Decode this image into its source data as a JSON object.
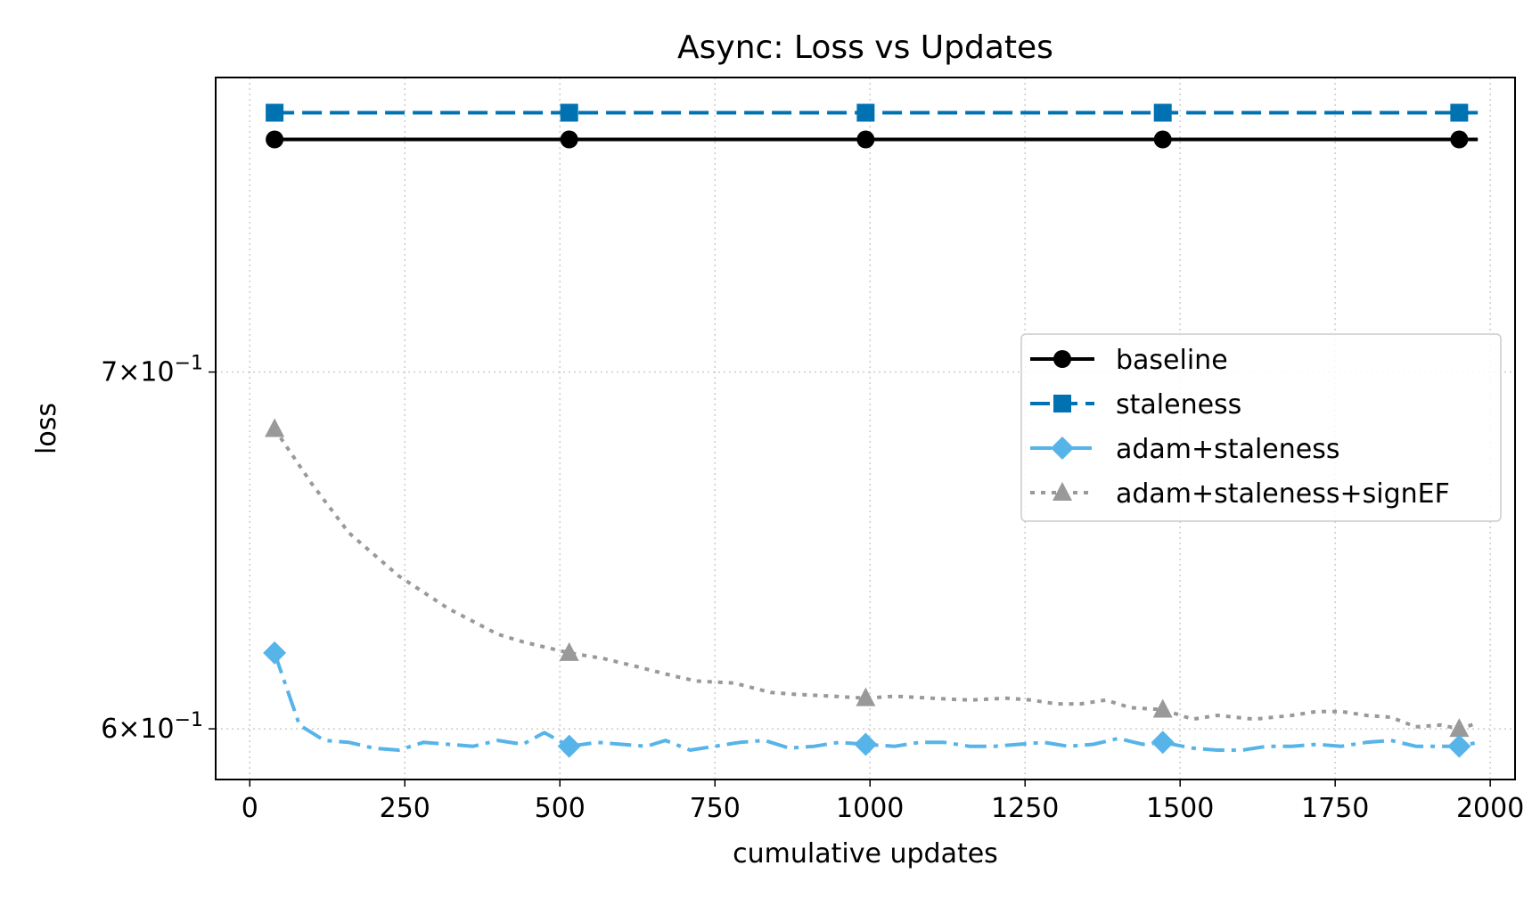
{
  "chart_data": {
    "type": "line",
    "title": "Async: Loss vs Updates",
    "xlabel": "cumulative updates",
    "ylabel": "loss",
    "yscale": "log",
    "xlim": [
      -55,
      2040
    ],
    "ylim": [
      0.587,
      0.795
    ],
    "xticks": [
      0,
      250,
      500,
      750,
      1000,
      1250,
      1500,
      1750,
      2000
    ],
    "xtick_labels": [
      "0",
      "250",
      "500",
      "750",
      "1000",
      "1250",
      "1500",
      "1750",
      "2000"
    ],
    "yticks": [
      {
        "value": 0.7,
        "mantissa": "7",
        "exponent": "−1"
      },
      {
        "value": 0.6,
        "mantissa": "6",
        "exponent": "−1"
      }
    ],
    "grid": true,
    "legend_position": "center-right",
    "series": [
      {
        "name": "baseline",
        "color": "#000000",
        "linestyle": "solid",
        "marker": "circle",
        "x": [
          40,
          1980
        ],
        "y": [
          0.774,
          0.774
        ],
        "marker_x": [
          40,
          515,
          993,
          1472,
          1950
        ],
        "marker_y": [
          0.774,
          0.774,
          0.774,
          0.774,
          0.774
        ]
      },
      {
        "name": "staleness",
        "color": "#0072b2",
        "linestyle": "dashed",
        "marker": "square",
        "x": [
          40,
          1980
        ],
        "y": [
          0.783,
          0.783
        ],
        "marker_x": [
          40,
          515,
          993,
          1472,
          1950
        ],
        "marker_y": [
          0.783,
          0.783,
          0.783,
          0.783,
          0.783
        ]
      },
      {
        "name": "adam+staleness",
        "color": "#56b4e9",
        "linestyle": "dashdot",
        "marker": "diamond",
        "x": [
          40,
          80,
          120,
          160,
          200,
          240,
          280,
          320,
          360,
          400,
          440,
          475,
          515,
          560,
          600,
          640,
          670,
          710,
          750,
          790,
          830,
          870,
          910,
          950,
          993,
          1040,
          1080,
          1120,
          1160,
          1200,
          1240,
          1280,
          1320,
          1360,
          1400,
          1440,
          1472,
          1520,
          1560,
          1600,
          1640,
          1680,
          1720,
          1760,
          1800,
          1840,
          1880,
          1920,
          1950,
          1980
        ],
        "y": [
          0.62,
          0.601,
          0.597,
          0.5965,
          0.595,
          0.5945,
          0.5965,
          0.596,
          0.5955,
          0.597,
          0.596,
          0.599,
          0.5955,
          0.5965,
          0.596,
          0.5955,
          0.597,
          0.5945,
          0.5955,
          0.5965,
          0.597,
          0.595,
          0.5955,
          0.5965,
          0.596,
          0.5955,
          0.5965,
          0.5965,
          0.5955,
          0.5955,
          0.596,
          0.5965,
          0.5955,
          0.596,
          0.5975,
          0.596,
          0.5965,
          0.595,
          0.5945,
          0.5945,
          0.5955,
          0.5955,
          0.596,
          0.5955,
          0.5965,
          0.597,
          0.5955,
          0.5955,
          0.5955,
          0.5965
        ],
        "marker_x": [
          40,
          515,
          993,
          1472,
          1950
        ],
        "marker_y": [
          0.62,
          0.5955,
          0.596,
          0.5965,
          0.5955
        ]
      },
      {
        "name": "adam+staleness+signEF",
        "color": "#999999",
        "linestyle": "dotted",
        "marker": "triangle",
        "x": [
          40,
          100,
          160,
          240,
          320,
          400,
          440,
          515,
          570,
          620,
          680,
          720,
          780,
          840,
          880,
          940,
          993,
          1040,
          1100,
          1160,
          1220,
          1260,
          1300,
          1340,
          1380,
          1420,
          1472,
          1520,
          1560,
          1620,
          1680,
          1720,
          1760,
          1800,
          1840,
          1880,
          1920,
          1950,
          1980
        ],
        "y": [
          0.683,
          0.667,
          0.653,
          0.641,
          0.632,
          0.625,
          0.623,
          0.62,
          0.6185,
          0.6165,
          0.614,
          0.6125,
          0.612,
          0.6095,
          0.609,
          0.6085,
          0.608,
          0.6085,
          0.608,
          0.6075,
          0.608,
          0.6075,
          0.6065,
          0.6065,
          0.6075,
          0.6055,
          0.605,
          0.6025,
          0.6035,
          0.6025,
          0.6035,
          0.6045,
          0.6045,
          0.6035,
          0.603,
          0.6005,
          0.601,
          0.6,
          0.6015
        ],
        "marker_x": [
          40,
          515,
          993,
          1472,
          1950
        ],
        "marker_y": [
          0.683,
          0.62,
          0.608,
          0.605,
          0.6
        ]
      }
    ]
  }
}
